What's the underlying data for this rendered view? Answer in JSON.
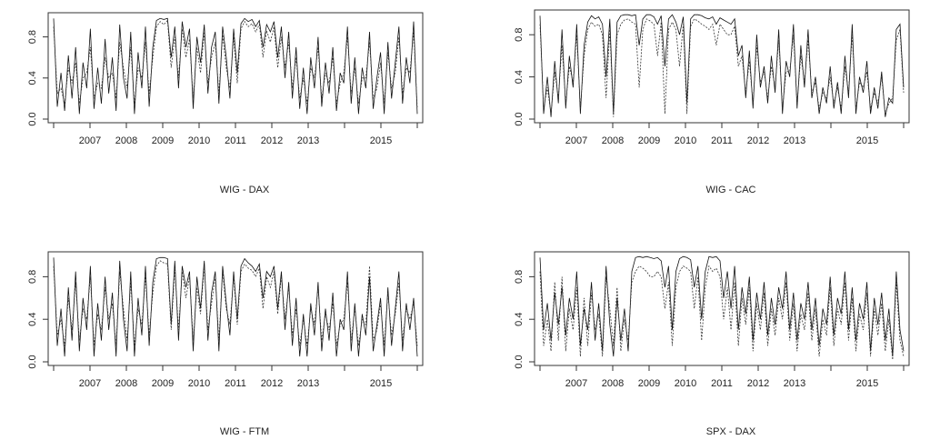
{
  "chart_data": [
    {
      "type": "line",
      "title": "WIG - DAX",
      "xlim": [
        2006.0,
        2016.0
      ],
      "ylim": [
        0.0,
        1.0
      ],
      "x_ticks": [
        "2007",
        "2008",
        "2009",
        "2010",
        "2011",
        "2012",
        "2013",
        "2015"
      ],
      "y_ticks": [
        "0.0",
        "0.4",
        "0.8"
      ],
      "series": [
        {
          "style": "solid",
          "values": [
            0.98,
            0.12,
            0.45,
            0.08,
            0.62,
            0.2,
            0.7,
            0.05,
            0.55,
            0.3,
            0.88,
            0.1,
            0.5,
            0.15,
            0.78,
            0.25,
            0.6,
            0.08,
            0.92,
            0.4,
            0.2,
            0.85,
            0.05,
            0.65,
            0.3,
            0.9,
            0.12,
            0.7,
            0.96,
            0.98,
            0.97,
            0.98,
            0.6,
            0.9,
            0.3,
            0.95,
            0.7,
            0.88,
            0.1,
            0.8,
            0.55,
            0.92,
            0.25,
            0.7,
            0.85,
            0.15,
            0.9,
            0.6,
            0.2,
            0.88,
            0.45,
            0.93,
            0.98,
            0.95,
            0.97,
            0.9,
            0.96,
            0.7,
            0.92,
            0.85,
            0.95,
            0.6,
            0.9,
            0.4,
            0.85,
            0.2,
            0.7,
            0.1,
            0.5,
            0.05,
            0.6,
            0.3,
            0.8,
            0.12,
            0.55,
            0.25,
            0.7,
            0.08,
            0.45,
            0.35,
            0.9,
            0.15,
            0.6,
            0.05,
            0.5,
            0.3,
            0.85,
            0.1,
            0.4,
            0.65,
            0.05,
            0.75,
            0.2,
            0.55,
            0.9,
            0.15,
            0.6,
            0.35,
            0.95,
            0.05
          ]
        },
        {
          "style": "dashed",
          "values": [
            0.9,
            0.25,
            0.3,
            0.15,
            0.5,
            0.35,
            0.55,
            0.15,
            0.4,
            0.45,
            0.7,
            0.2,
            0.35,
            0.3,
            0.6,
            0.4,
            0.45,
            0.2,
            0.75,
            0.5,
            0.3,
            0.7,
            0.15,
            0.5,
            0.4,
            0.75,
            0.25,
            0.6,
            0.9,
            0.95,
            0.92,
            0.96,
            0.5,
            0.8,
            0.4,
            0.88,
            0.6,
            0.78,
            0.2,
            0.7,
            0.45,
            0.85,
            0.35,
            0.6,
            0.75,
            0.25,
            0.82,
            0.5,
            0.3,
            0.8,
            0.35,
            0.88,
            0.95,
            0.9,
            0.93,
            0.85,
            0.92,
            0.6,
            0.86,
            0.75,
            0.9,
            0.5,
            0.8,
            0.5,
            0.75,
            0.3,
            0.6,
            0.2,
            0.4,
            0.15,
            0.5,
            0.4,
            0.7,
            0.2,
            0.45,
            0.35,
            0.6,
            0.15,
            0.35,
            0.45,
            0.8,
            0.25,
            0.5,
            0.15,
            0.4,
            0.4,
            0.75,
            0.2,
            0.3,
            0.55,
            0.15,
            0.65,
            0.3,
            0.45,
            0.8,
            0.25,
            0.5,
            0.45,
            0.85,
            0.1
          ]
        }
      ]
    },
    {
      "type": "line",
      "title": "WIG - CAC",
      "xlim": [
        2006.0,
        2016.0
      ],
      "ylim": [
        0.0,
        1.0
      ],
      "x_ticks": [
        "2007",
        "2008",
        "2009",
        "2010",
        "2011",
        "2012",
        "2013",
        "2015"
      ],
      "y_ticks": [
        "0.0",
        "0.4",
        "0.8"
      ],
      "series": [
        {
          "style": "solid",
          "values": [
            0.98,
            0.05,
            0.4,
            0.02,
            0.55,
            0.15,
            0.85,
            0.1,
            0.6,
            0.3,
            0.9,
            0.05,
            0.7,
            0.92,
            0.98,
            0.95,
            0.97,
            0.9,
            0.4,
            0.95,
            0.05,
            0.92,
            0.98,
            0.99,
            0.99,
            0.98,
            0.99,
            0.7,
            0.95,
            0.99,
            0.99,
            0.97,
            0.9,
            0.98,
            0.5,
            0.95,
            0.99,
            0.92,
            0.8,
            0.97,
            0.15,
            0.95,
            0.99,
            0.99,
            0.98,
            0.96,
            0.95,
            0.97,
            0.9,
            0.96,
            0.94,
            0.92,
            0.9,
            0.95,
            0.6,
            0.7,
            0.2,
            0.65,
            0.1,
            0.8,
            0.3,
            0.5,
            0.15,
            0.6,
            0.25,
            0.85,
            0.05,
            0.55,
            0.4,
            0.9,
            0.1,
            0.7,
            0.3,
            0.85,
            0.2,
            0.4,
            0.05,
            0.3,
            0.15,
            0.5,
            0.1,
            0.35,
            0.05,
            0.6,
            0.2,
            0.9,
            0.05,
            0.4,
            0.25,
            0.55,
            0.05,
            0.3,
            0.1,
            0.45,
            0.02,
            0.2,
            0.15,
            0.85,
            0.9,
            0.3
          ]
        },
        {
          "style": "dashed",
          "values": [
            0.9,
            0.1,
            0.3,
            0.05,
            0.45,
            0.2,
            0.7,
            0.15,
            0.5,
            0.35,
            0.8,
            0.1,
            0.6,
            0.85,
            0.92,
            0.88,
            0.9,
            0.8,
            0.2,
            0.85,
            0.02,
            0.8,
            0.9,
            0.94,
            0.95,
            0.92,
            0.9,
            0.3,
            0.85,
            0.95,
            0.93,
            0.9,
            0.6,
            0.92,
            0.05,
            0.85,
            0.92,
            0.85,
            0.5,
            0.9,
            0.05,
            0.88,
            0.95,
            0.93,
            0.9,
            0.88,
            0.85,
            0.9,
            0.7,
            0.9,
            0.85,
            0.8,
            0.8,
            0.88,
            0.5,
            0.6,
            0.25,
            0.55,
            0.15,
            0.7,
            0.35,
            0.45,
            0.2,
            0.5,
            0.3,
            0.75,
            0.1,
            0.45,
            0.45,
            0.8,
            0.15,
            0.6,
            0.35,
            0.75,
            0.25,
            0.35,
            0.1,
            0.25,
            0.2,
            0.4,
            0.15,
            0.3,
            0.1,
            0.5,
            0.25,
            0.8,
            0.1,
            0.35,
            0.3,
            0.45,
            0.1,
            0.25,
            0.15,
            0.4,
            0.05,
            0.15,
            0.2,
            0.75,
            0.85,
            0.25
          ]
        }
      ]
    },
    {
      "type": "line",
      "title": "WIG - FTM",
      "xlim": [
        2006.0,
        2016.0
      ],
      "ylim": [
        0.0,
        1.0
      ],
      "x_ticks": [
        "2007",
        "2008",
        "2009",
        "2010",
        "2011",
        "2012",
        "2013",
        "2015"
      ],
      "y_ticks": [
        "0.0",
        "0.4",
        "0.8"
      ],
      "series": [
        {
          "style": "solid",
          "values": [
            0.98,
            0.15,
            0.5,
            0.05,
            0.7,
            0.2,
            0.85,
            0.1,
            0.6,
            0.3,
            0.9,
            0.05,
            0.55,
            0.2,
            0.8,
            0.3,
            0.65,
            0.05,
            0.95,
            0.4,
            0.1,
            0.85,
            0.05,
            0.6,
            0.25,
            0.9,
            0.15,
            0.75,
            0.97,
            0.98,
            0.98,
            0.97,
            0.35,
            0.95,
            0.2,
            0.9,
            0.7,
            0.85,
            0.1,
            0.8,
            0.5,
            0.95,
            0.2,
            0.65,
            0.85,
            0.1,
            0.9,
            0.55,
            0.25,
            0.85,
            0.4,
            0.9,
            0.97,
            0.93,
            0.9,
            0.85,
            0.92,
            0.6,
            0.85,
            0.8,
            0.9,
            0.5,
            0.85,
            0.3,
            0.75,
            0.15,
            0.6,
            0.05,
            0.45,
            0.05,
            0.55,
            0.25,
            0.75,
            0.1,
            0.5,
            0.2,
            0.65,
            0.05,
            0.4,
            0.3,
            0.85,
            0.1,
            0.55,
            0.05,
            0.45,
            0.25,
            0.8,
            0.1,
            0.35,
            0.6,
            0.05,
            0.7,
            0.15,
            0.5,
            0.85,
            0.1,
            0.55,
            0.3,
            0.6,
            0.05
          ]
        },
        {
          "style": "dashed",
          "values": [
            0.9,
            0.25,
            0.4,
            0.15,
            0.6,
            0.3,
            0.75,
            0.2,
            0.5,
            0.4,
            0.8,
            0.15,
            0.45,
            0.3,
            0.7,
            0.4,
            0.55,
            0.15,
            0.85,
            0.5,
            0.2,
            0.75,
            0.15,
            0.5,
            0.35,
            0.8,
            0.25,
            0.65,
            0.9,
            0.95,
            0.93,
            0.92,
            0.3,
            0.88,
            0.3,
            0.85,
            0.6,
            0.8,
            0.2,
            0.7,
            0.45,
            0.9,
            0.3,
            0.55,
            0.8,
            0.2,
            0.85,
            0.5,
            0.35,
            0.8,
            0.35,
            0.85,
            0.92,
            0.88,
            0.86,
            0.8,
            0.88,
            0.5,
            0.8,
            0.7,
            0.85,
            0.45,
            0.8,
            0.4,
            0.7,
            0.25,
            0.5,
            0.15,
            0.4,
            0.15,
            0.5,
            0.35,
            0.7,
            0.2,
            0.45,
            0.3,
            0.55,
            0.15,
            0.35,
            0.4,
            0.75,
            0.2,
            0.5,
            0.15,
            0.4,
            0.35,
            0.9,
            0.2,
            0.3,
            0.55,
            0.15,
            0.65,
            0.25,
            0.45,
            0.75,
            0.2,
            0.5,
            0.4,
            0.55,
            0.15
          ]
        }
      ]
    },
    {
      "type": "line",
      "title": "SPX - DAX",
      "xlim": [
        2006.0,
        2016.0
      ],
      "ylim": [
        0.0,
        1.0
      ],
      "x_ticks": [
        "2007",
        "2008",
        "2009",
        "2010",
        "2011",
        "2012",
        "2013",
        "2015"
      ],
      "y_ticks": [
        "0.0",
        "0.4",
        "0.8"
      ],
      "series": [
        {
          "style": "solid",
          "values": [
            0.98,
            0.3,
            0.55,
            0.2,
            0.65,
            0.35,
            0.7,
            0.25,
            0.6,
            0.4,
            0.85,
            0.15,
            0.5,
            0.3,
            0.75,
            0.2,
            0.55,
            0.1,
            0.9,
            0.35,
            0.05,
            0.6,
            0.2,
            0.5,
            0.1,
            0.85,
            0.98,
            0.99,
            0.98,
            0.99,
            0.98,
            0.97,
            0.98,
            0.95,
            0.7,
            0.9,
            0.3,
            0.85,
            0.97,
            0.99,
            0.98,
            0.96,
            0.7,
            0.9,
            0.4,
            0.85,
            0.99,
            0.98,
            0.99,
            0.95,
            0.6,
            0.85,
            0.5,
            0.9,
            0.3,
            0.7,
            0.45,
            0.8,
            0.2,
            0.65,
            0.4,
            0.75,
            0.25,
            0.6,
            0.35,
            0.7,
            0.5,
            0.85,
            0.3,
            0.65,
            0.2,
            0.55,
            0.4,
            0.75,
            0.3,
            0.6,
            0.15,
            0.5,
            0.35,
            0.8,
            0.25,
            0.6,
            0.45,
            0.85,
            0.3,
            0.7,
            0.2,
            0.55,
            0.4,
            0.75,
            0.1,
            0.6,
            0.35,
            0.65,
            0.2,
            0.5,
            0.05,
            0.85,
            0.3,
            0.1
          ]
        },
        {
          "style": "dashed",
          "values": [
            0.85,
            0.15,
            0.4,
            0.1,
            0.75,
            0.2,
            0.8,
            0.1,
            0.5,
            0.3,
            0.7,
            0.05,
            0.6,
            0.15,
            0.65,
            0.3,
            0.45,
            0.05,
            0.8,
            0.5,
            0.15,
            0.7,
            0.1,
            0.4,
            0.2,
            0.75,
            0.85,
            0.9,
            0.88,
            0.85,
            0.8,
            0.8,
            0.85,
            0.8,
            0.5,
            0.75,
            0.15,
            0.7,
            0.85,
            0.9,
            0.88,
            0.85,
            0.5,
            0.8,
            0.2,
            0.7,
            0.9,
            0.85,
            0.88,
            0.8,
            0.4,
            0.7,
            0.3,
            0.75,
            0.15,
            0.6,
            0.35,
            0.7,
            0.1,
            0.55,
            0.3,
            0.65,
            0.15,
            0.5,
            0.25,
            0.6,
            0.4,
            0.75,
            0.2,
            0.55,
            0.1,
            0.45,
            0.3,
            0.65,
            0.2,
            0.5,
            0.05,
            0.4,
            0.25,
            0.7,
            0.15,
            0.5,
            0.35,
            0.75,
            0.2,
            0.6,
            0.1,
            0.45,
            0.3,
            0.65,
            0.05,
            0.5,
            0.25,
            0.55,
            0.1,
            0.4,
            0.02,
            0.75,
            0.2,
            0.05
          ]
        }
      ]
    }
  ]
}
